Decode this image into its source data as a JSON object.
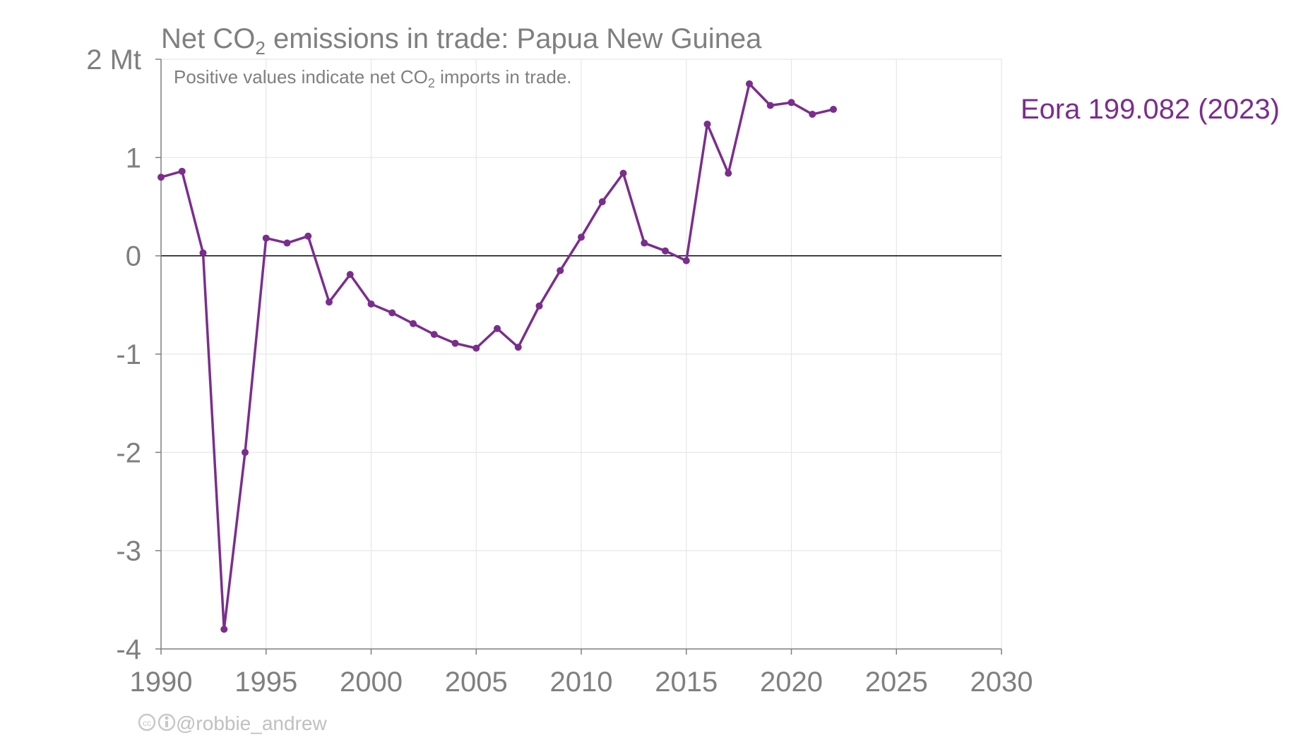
{
  "chart_data": {
    "type": "line",
    "title_parts": {
      "before": "Net CO",
      "sub": "2",
      "after": " emissions in trade: Papua New Guinea"
    },
    "subtitle_parts": {
      "before": "Positive values indicate net CO",
      "sub": "2",
      "after": " imports in trade."
    },
    "y_unit_label": "2 Mt",
    "xlim": [
      1990,
      2030
    ],
    "ylim": [
      -4,
      2
    ],
    "x_ticks": [
      1990,
      1995,
      2000,
      2005,
      2010,
      2015,
      2020,
      2025,
      2030
    ],
    "y_ticks": [
      {
        "value": 2,
        "label": "2 Mt"
      },
      {
        "value": 1,
        "label": "1"
      },
      {
        "value": 0,
        "label": "0"
      },
      {
        "value": -1,
        "label": "-1"
      },
      {
        "value": -2,
        "label": "-2"
      },
      {
        "value": -3,
        "label": "-3"
      },
      {
        "value": -4,
        "label": "-4"
      }
    ],
    "grid": true,
    "series": [
      {
        "name": "Eora 199.082 (2023)",
        "color": "#7b2d8e",
        "x": [
          1990,
          1991,
          1992,
          1993,
          1994,
          1995,
          1996,
          1997,
          1998,
          1999,
          2000,
          2001,
          2002,
          2003,
          2004,
          2005,
          2006,
          2007,
          2008,
          2009,
          2010,
          2011,
          2012,
          2013,
          2014,
          2015,
          2016,
          2017,
          2018,
          2019,
          2020,
          2021,
          2022
        ],
        "y": [
          0.8,
          0.86,
          0.03,
          -3.8,
          -2.0,
          0.18,
          0.13,
          0.2,
          -0.47,
          -0.19,
          -0.49,
          -0.58,
          -0.69,
          -0.8,
          -0.89,
          -0.94,
          -0.74,
          -0.93,
          -0.51,
          -0.15,
          0.19,
          0.55,
          0.84,
          0.13,
          0.05,
          -0.05,
          1.34,
          0.84,
          1.75,
          1.53,
          1.56,
          1.44,
          1.49
        ]
      }
    ]
  },
  "credit": {
    "icons": [
      "cc-icon",
      "attribution-icon"
    ],
    "handle": "@robbie_andrew"
  },
  "colors": {
    "series": "#7b2d8e",
    "grid": "#e6e6e6",
    "axis": "#7f7f7f",
    "zero_line": "#000000",
    "text": "#7f7f7f"
  }
}
